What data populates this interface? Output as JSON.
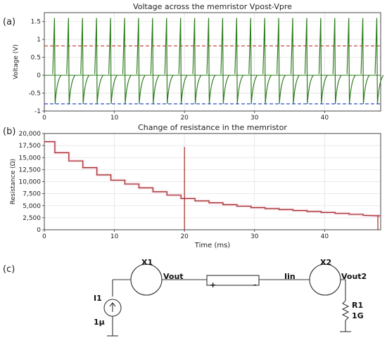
{
  "panels": {
    "a": "(a)",
    "b": "(b)",
    "c": "(c)"
  },
  "chart_data": [
    {
      "type": "line",
      "title": "Voltage across the memristor Vpost-Vpre",
      "xlabel": "",
      "ylabel": "Voltage (V)",
      "xlim": [
        0,
        48
      ],
      "ylim": [
        -1.0,
        1.75
      ],
      "xticks": [
        0,
        10,
        20,
        30,
        40
      ],
      "yticks": [
        -1.0,
        -0.5,
        0.0,
        0.5,
        1.0,
        1.5
      ],
      "grid": true,
      "series": [
        {
          "color": "#2e7d1e",
          "spike_times_ms": [
            1.5,
            3.5,
            5.5,
            7.5,
            9.5,
            11.5,
            13.5,
            15.5,
            17.5,
            19.5,
            21.5,
            23.5,
            25.5,
            27.5,
            29.5,
            31.5,
            33.5,
            35.5,
            37.5,
            39.5,
            41.5,
            43.5,
            45.5,
            47.5
          ],
          "spike_peak_V": 1.6,
          "spike_trough_V": -0.8,
          "baseline_V": 0.0
        }
      ],
      "hlines": [
        {
          "y": 0.82,
          "color": "#c0392b",
          "style": "dashed"
        },
        {
          "y": -0.8,
          "color": "#1f3fbf",
          "style": "dashed"
        }
      ]
    },
    {
      "type": "line",
      "title": "Change of resistance in the memristor",
      "xlabel": "Time (ms)",
      "ylabel": "Resistance (Ω)",
      "xlim": [
        0,
        48
      ],
      "ylim": [
        0,
        20000
      ],
      "xticks": [
        0,
        10,
        20,
        30,
        40
      ],
      "yticks": [
        0,
        2500,
        5000,
        7500,
        10000,
        12500,
        15000,
        17500,
        20000
      ],
      "ytick_labels": [
        "0",
        "2,500",
        "5,000",
        "7,500",
        "10,000",
        "12,500",
        "15,000",
        "17,500",
        "20,000"
      ],
      "grid": true,
      "series": [
        {
          "color": "#a0281e",
          "x": [
            0,
            1.5,
            1.5,
            3.5,
            3.5,
            5.5,
            5.5,
            7.5,
            7.5,
            9.5,
            9.5,
            11.5,
            11.5,
            13.5,
            13.5,
            15.5,
            15.5,
            17.5,
            17.5,
            19.5,
            19.5,
            21.5,
            21.5,
            23.5,
            23.5,
            25.5,
            25.5,
            27.5,
            27.5,
            29.5,
            29.5,
            31.5,
            31.5,
            33.5,
            33.5,
            35.5,
            35.5,
            37.5,
            37.5,
            39.5,
            39.5,
            41.5,
            41.5,
            43.5,
            43.5,
            45.5,
            45.5,
            48
          ],
          "y": [
            18300,
            18300,
            16000,
            16000,
            14300,
            14300,
            12900,
            12900,
            11400,
            11400,
            10300,
            10300,
            9500,
            9500,
            8700,
            8700,
            7900,
            7900,
            7200,
            7200,
            6500,
            6500,
            6000,
            6000,
            5600,
            5600,
            5200,
            5200,
            4900,
            4900,
            4600,
            4600,
            4400,
            4400,
            4200,
            4200,
            4000,
            4000,
            3800,
            3800,
            3600,
            3600,
            3400,
            3400,
            3200,
            3200,
            3000,
            2900
          ]
        }
      ],
      "annotations": [
        {
          "x": 20,
          "y_from": 0,
          "y_to": 17200,
          "kind": "spike"
        },
        {
          "x": 47.6,
          "y_from": 0,
          "y_to": 3000,
          "kind": "spike"
        }
      ]
    }
  ],
  "circuit": {
    "i1": "I1",
    "i1_value": "1μ",
    "x1": "X1",
    "vout": "Vout",
    "plus": "+",
    "minus": "-",
    "iin": "Iin",
    "x2": "X2",
    "vout2": "Vout2",
    "r1": "R1",
    "r1_value": "1G"
  }
}
